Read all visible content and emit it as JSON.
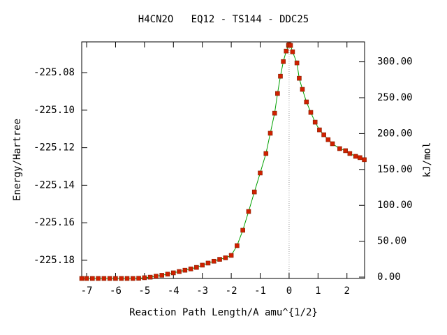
{
  "chart_data": {
    "type": "line",
    "title": "H4CN2O   EQ12 - TS144 - DDC25",
    "x_label": "Reaction Path Length/A amu^{1/2}",
    "y_label": "Energy/Hartree",
    "y2_label": "kJ/mol",
    "x": [
      -7.17,
      -7.0,
      -6.8,
      -6.6,
      -6.4,
      -6.2,
      -6.0,
      -5.8,
      -5.6,
      -5.4,
      -5.2,
      -5.0,
      -4.8,
      -4.6,
      -4.4,
      -4.2,
      -4.0,
      -3.8,
      -3.6,
      -3.4,
      -3.2,
      -3.0,
      -2.8,
      -2.6,
      -2.4,
      -2.2,
      -2.0,
      -1.8,
      -1.6,
      -1.4,
      -1.2,
      -1.0,
      -0.8,
      -0.65,
      -0.5,
      -0.4,
      -0.3,
      -0.2,
      -0.1,
      -0.02,
      0.0,
      0.05,
      0.12,
      0.27,
      0.35,
      0.46,
      0.6,
      0.75,
      0.9,
      1.05,
      1.2,
      1.35,
      1.5,
      1.75,
      1.95,
      2.1,
      2.3,
      2.45,
      2.6
    ],
    "series": [
      {
        "name": "Energy",
        "color": "#00a000",
        "marker_color": "#d02000",
        "values": [
          -225.1897,
          -225.1897,
          -225.1897,
          -225.1897,
          -225.1897,
          -225.1897,
          -225.1897,
          -225.1897,
          -225.1897,
          -225.1897,
          -225.1896,
          -225.1893,
          -225.189,
          -225.1885,
          -225.188,
          -225.1874,
          -225.1867,
          -225.186,
          -225.1853,
          -225.1846,
          -225.1838,
          -225.1826,
          -225.1815,
          -225.1805,
          -225.1795,
          -225.1787,
          -225.1774,
          -225.1722,
          -225.164,
          -225.154,
          -225.1436,
          -225.1335,
          -225.1231,
          -225.1123,
          -225.1016,
          -225.0911,
          -225.0819,
          -225.0741,
          -225.0685,
          -225.0655,
          -225.0651,
          -225.0655,
          -225.0689,
          -225.0748,
          -225.083,
          -225.0889,
          -225.0956,
          -225.1012,
          -225.1064,
          -225.1105,
          -225.1131,
          -225.1157,
          -225.1179,
          -225.1205,
          -225.1216,
          -225.1231,
          -225.1246,
          -225.1253,
          -225.1264
        ]
      }
    ],
    "xlim": [
      -7.17,
      2.61
    ],
    "ylim": [
      -225.1897,
      -225.0636
    ],
    "y2lim": [
      -1.9,
      327.8
    ],
    "xticks": [
      -7,
      -6,
      -5,
      -4,
      -3,
      -2,
      -1,
      0,
      1,
      2
    ],
    "yticks": [
      -225.18,
      -225.16,
      -225.14,
      -225.12,
      {
        "value": -225.1,
        "label": "-225.10"
      },
      -225.08
    ],
    "y2ticks": [
      {
        "value": 0,
        "label": "0.00"
      },
      {
        "value": 50,
        "label": "50.00"
      },
      {
        "value": 100,
        "label": "100.00"
      },
      {
        "value": 150,
        "label": "150.00"
      },
      {
        "value": 200,
        "label": "200.00"
      },
      {
        "value": 250,
        "label": "250.00"
      },
      {
        "value": 300,
        "label": "300.00"
      }
    ]
  }
}
